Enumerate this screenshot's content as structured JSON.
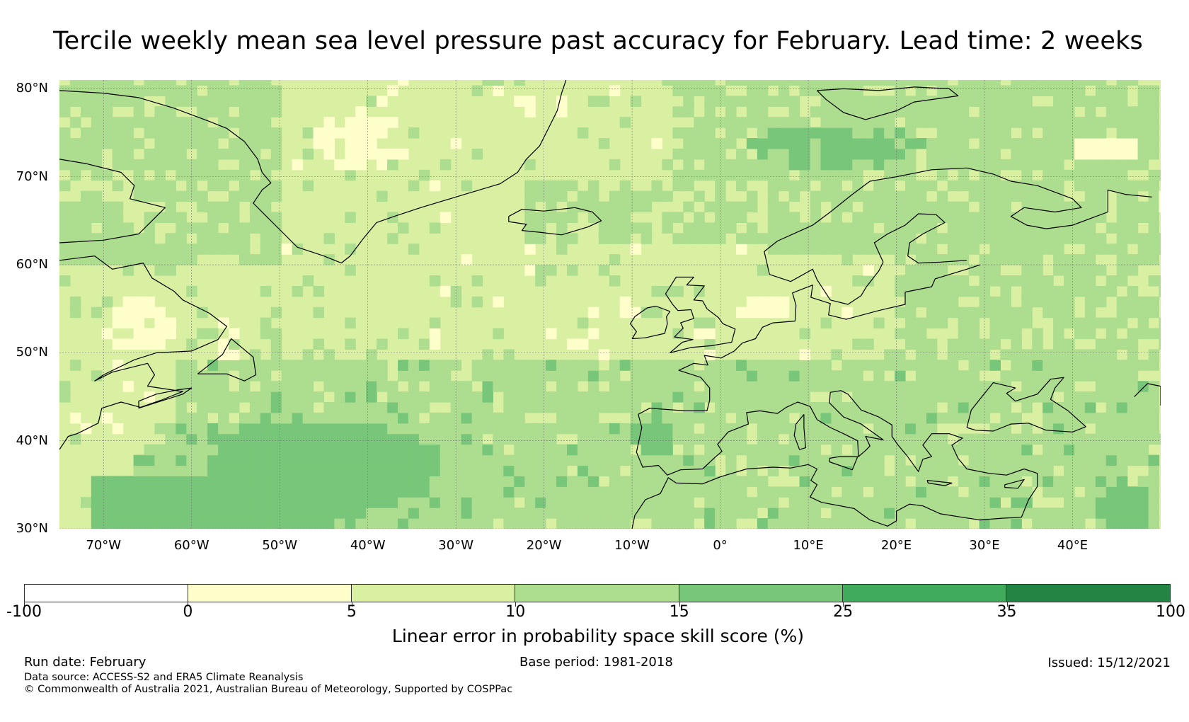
{
  "title": "Tercile weekly mean sea level pressure past accuracy for February. Lead time: 2 weeks",
  "map": {
    "lon_range": [
      -75,
      50
    ],
    "lat_range": [
      30,
      81
    ],
    "lat_labels": [
      "80°N",
      "70°N",
      "60°N",
      "50°N",
      "40°N",
      "30°N"
    ],
    "lat_values": [
      80,
      70,
      60,
      50,
      40,
      30
    ],
    "lon_labels": [
      "70°W",
      "60°W",
      "50°W",
      "40°W",
      "30°W",
      "20°W",
      "10°W",
      "0°",
      "10°E",
      "20°E",
      "30°E",
      "40°E"
    ],
    "lon_values": [
      -70,
      -60,
      -50,
      -40,
      -30,
      -20,
      -10,
      0,
      10,
      20,
      30,
      40
    ],
    "land_regions": [
      "Greenland",
      "Iceland",
      "Scandinavia",
      "British Isles",
      "Europe",
      "North America",
      "North Africa",
      "Black Sea",
      "Mediterranean"
    ]
  },
  "colorbar": {
    "bounds": [
      -100,
      0,
      5,
      10,
      15,
      25,
      35,
      100
    ],
    "tick_labels": [
      "-100",
      "0",
      "5",
      "10",
      "15",
      "25",
      "35",
      "100"
    ],
    "colors": [
      "#ffffff",
      "#ffffcc",
      "#d9f0a3",
      "#addd8e",
      "#78c679",
      "#41ab5d",
      "#238443"
    ],
    "label": "Linear error in probability space skill score (%)"
  },
  "footer": {
    "run_date": "Run date: February",
    "base_period": "Base period: 1981-2018",
    "issued": "Issued: 15/12/2021",
    "data_source": "Data source: ACCESS-S2 and ERA5 Climate Reanalysis",
    "copyright": "© Commonwealth of Australia 2021, Australian Bureau of Meteorology, Supported by COSPPac"
  }
}
